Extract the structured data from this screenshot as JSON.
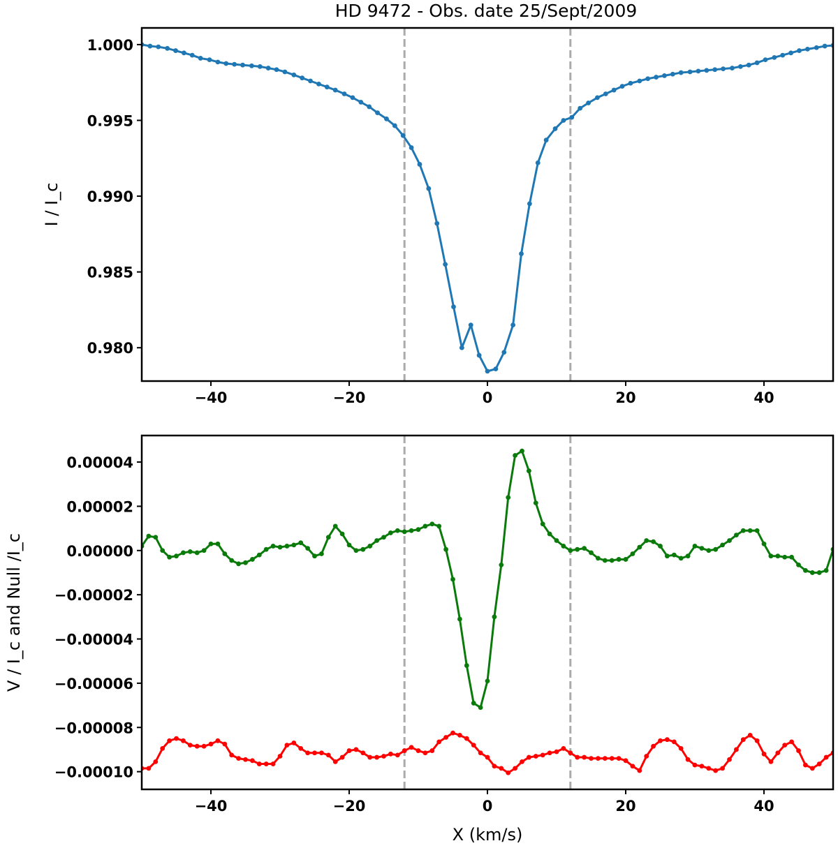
{
  "chart_data": [
    {
      "type": "line",
      "title": "HD 9472 -  Obs. date  25/Sept/2009",
      "xlabel": "",
      "ylabel": "I / I_c",
      "xlim": [
        -50,
        50
      ],
      "ylim": [
        0.9778,
        1.0011
      ],
      "xticks": [
        -40,
        -20,
        0,
        20,
        40
      ],
      "xtick_labels": [
        "−40",
        "−20",
        "0",
        "20",
        "40"
      ],
      "yticks": [
        0.98,
        0.985,
        0.99,
        0.995,
        1.0
      ],
      "ytick_labels": [
        "0.980",
        "0.985",
        "0.990",
        "0.995",
        "1.000"
      ],
      "vlines": [
        -12,
        12
      ],
      "vline_color": "#aaaaaa",
      "grid": false,
      "series": [
        {
          "color": "#1f77b4",
          "marker": "circle",
          "x": [
            -50,
            -48.8,
            -47.6,
            -46.3,
            -45.1,
            -43.9,
            -42.7,
            -41.5,
            -40.2,
            -39,
            -37.8,
            -36.6,
            -35.4,
            -34.1,
            -32.9,
            -31.7,
            -30.5,
            -29.3,
            -28,
            -26.8,
            -25.6,
            -24.4,
            -23.2,
            -22,
            -20.7,
            -19.5,
            -18.3,
            -17.1,
            -15.9,
            -14.6,
            -13.4,
            -12.2,
            -11,
            -9.8,
            -8.5,
            -7.3,
            -6.1,
            -4.9,
            -3.7,
            -2.4,
            -1.2,
            0,
            1.2,
            2.4,
            3.7,
            4.9,
            6.1,
            7.3,
            8.5,
            9.8,
            11,
            12.2,
            13.4,
            14.6,
            15.9,
            17.1,
            18.3,
            19.5,
            20.7,
            22,
            23.2,
            24.4,
            25.6,
            26.8,
            28,
            29.3,
            30.5,
            31.7,
            32.9,
            34.1,
            35.4,
            36.6,
            37.8,
            39,
            40.2,
            41.5,
            42.7,
            43.9,
            45.1,
            46.3,
            47.6,
            48.8,
            50
          ],
          "y": [
            1.0,
            0.9999,
            0.99985,
            0.99975,
            0.9996,
            0.99945,
            0.9993,
            0.9991,
            0.999,
            0.99885,
            0.99875,
            0.9987,
            0.99865,
            0.9986,
            0.99855,
            0.99845,
            0.99835,
            0.9982,
            0.998,
            0.9978,
            0.9976,
            0.9974,
            0.9972,
            0.997,
            0.99675,
            0.9965,
            0.9962,
            0.9959,
            0.9955,
            0.9951,
            0.99465,
            0.994,
            0.9932,
            0.9921,
            0.9905,
            0.9882,
            0.9855,
            0.9827,
            0.98,
            0.9815,
            0.9795,
            0.97845,
            0.9786,
            0.9797,
            0.9815,
            0.9862,
            0.9895,
            0.9922,
            0.9937,
            0.99445,
            0.995,
            0.9952,
            0.9958,
            0.99615,
            0.9965,
            0.99675,
            0.997,
            0.99725,
            0.99745,
            0.9976,
            0.99775,
            0.99785,
            0.99795,
            0.99805,
            0.99815,
            0.9982,
            0.99825,
            0.9983,
            0.99835,
            0.9984,
            0.99845,
            0.99855,
            0.99865,
            0.9988,
            0.999,
            0.99915,
            0.9993,
            0.99945,
            0.9996,
            0.9997,
            0.9998,
            0.9999,
            0.99995
          ]
        }
      ]
    },
    {
      "type": "line",
      "title": "",
      "xlabel": "X  (km/s)",
      "ylabel": "V / I_c  and  Null /I_c",
      "xlim": [
        -50,
        50
      ],
      "ylim": [
        -0.000108,
        5.2e-05
      ],
      "xticks": [
        -40,
        -20,
        0,
        20,
        40
      ],
      "xtick_labels": [
        "−40",
        "−20",
        "0",
        "20",
        "40"
      ],
      "yticks": [
        -0.0001,
        -8e-05,
        -6e-05,
        -4e-05,
        -2e-05,
        0,
        2e-05,
        4e-05
      ],
      "ytick_labels": [
        "−0.00010",
        "−0.00008",
        "−0.00006",
        "−0.00004",
        "−0.00002",
        "0.00000",
        "0.00002",
        "0.00004"
      ],
      "vlines": [
        -12,
        12
      ],
      "vline_color": "#aaaaaa",
      "grid": false,
      "series": [
        {
          "color": "#0a7a0a",
          "marker": "circle",
          "x": [
            -50,
            -49,
            -48,
            -47,
            -46,
            -45,
            -44,
            -43,
            -42,
            -41,
            -40,
            -39,
            -38,
            -37,
            -36,
            -35,
            -34,
            -33,
            -32,
            -31,
            -30,
            -29,
            -28,
            -27,
            -26,
            -25,
            -24,
            -23,
            -22,
            -21,
            -20,
            -19,
            -18,
            -17,
            -16,
            -15,
            -14,
            -13,
            -12,
            -11,
            -10,
            -9,
            -8,
            -7,
            -6,
            -5,
            -4,
            -3,
            -2,
            -1,
            0,
            1,
            2,
            3,
            4,
            5,
            6,
            7,
            8,
            9,
            10,
            11,
            12,
            13,
            14,
            15,
            16,
            17,
            18,
            19,
            20,
            21,
            22,
            23,
            24,
            25,
            26,
            27,
            28,
            29,
            30,
            31,
            32,
            33,
            34,
            35,
            36,
            37,
            38,
            39,
            40,
            41,
            42,
            43,
            44,
            45,
            46,
            47,
            48,
            49,
            50
          ],
          "y": [
            2e-06,
            6.5e-06,
            6e-06,
            0,
            -3e-06,
            -2.5e-06,
            -1e-06,
            -5e-07,
            -1e-06,
            0,
            3e-06,
            3e-06,
            -1.5e-06,
            -4.5e-06,
            -6e-06,
            -5.5e-06,
            -4e-06,
            -2e-06,
            5e-07,
            2e-06,
            1.5e-06,
            2e-06,
            2.5e-06,
            3.5e-06,
            1e-06,
            -2.5e-06,
            -1.5e-06,
            6e-06,
            1.1e-05,
            7.5e-06,
            2.5e-06,
            0,
            5e-07,
            2e-06,
            4.5e-06,
            6e-06,
            8e-06,
            9e-06,
            8.5e-06,
            9e-06,
            9.5e-06,
            1.1e-05,
            1.2e-05,
            1.1e-05,
            5e-07,
            -1.3e-05,
            -3.1e-05,
            -5.2e-05,
            -6.9e-05,
            -7.1e-05,
            -5.9e-05,
            -3e-05,
            -6.5e-06,
            2.4e-05,
            4.3e-05,
            4.5e-05,
            3.6e-05,
            2.15e-05,
            1.2e-05,
            7.5e-06,
            4.5e-06,
            2e-06,
            0,
            5e-07,
            1e-06,
            -1e-06,
            -3.5e-06,
            -4.5e-06,
            -4.5e-06,
            -4e-06,
            -4e-06,
            -1.5e-06,
            1.5e-06,
            4.5e-06,
            4e-06,
            2e-06,
            -2.5e-06,
            -2e-06,
            -3.5e-06,
            -2.5e-06,
            2e-06,
            1e-06,
            0,
            5e-07,
            2.5e-06,
            4.5e-06,
            7e-06,
            9e-06,
            9e-06,
            9e-06,
            3e-06,
            -2.5e-06,
            -2.5e-06,
            -3e-06,
            -3e-06,
            -6.5e-06,
            -9e-06,
            -1e-05,
            -1e-05,
            -9e-06,
            5e-07
          ]
        },
        {
          "color": "#ff0000",
          "marker": "circle",
          "x": [
            -50,
            -49,
            -48,
            -47,
            -46,
            -45,
            -44,
            -43,
            -42,
            -41,
            -40,
            -39,
            -38,
            -37,
            -36,
            -35,
            -34,
            -33,
            -32,
            -31,
            -30,
            -29,
            -28,
            -27,
            -26,
            -25,
            -24,
            -23,
            -22,
            -21,
            -20,
            -19,
            -18,
            -17,
            -16,
            -15,
            -14,
            -13,
            -12,
            -11,
            -10,
            -9,
            -8,
            -7,
            -6,
            -5,
            -4,
            -3,
            -2,
            -1,
            0,
            1,
            2,
            3,
            4,
            5,
            6,
            7,
            8,
            9,
            10,
            11,
            12,
            13,
            14,
            15,
            16,
            17,
            18,
            19,
            20,
            21,
            22,
            23,
            24,
            25,
            26,
            27,
            28,
            29,
            30,
            31,
            32,
            33,
            34,
            35,
            36,
            37,
            38,
            39,
            40,
            41,
            42,
            43,
            44,
            45,
            46,
            47,
            48,
            49,
            50
          ],
          "y": [
            -9.85e-05,
            -9.85e-05,
            -9.55e-05,
            -8.95e-05,
            -8.6e-05,
            -8.5e-05,
            -8.6e-05,
            -8.8e-05,
            -8.85e-05,
            -8.85e-05,
            -8.75e-05,
            -8.6e-05,
            -8.75e-05,
            -9.25e-05,
            -9.4e-05,
            -9.45e-05,
            -9.5e-05,
            -9.65e-05,
            -9.65e-05,
            -9.65e-05,
            -9.3e-05,
            -8.8e-05,
            -8.7e-05,
            -8.95e-05,
            -9.15e-05,
            -9.15e-05,
            -9.15e-05,
            -9.25e-05,
            -9.55e-05,
            -9.35e-05,
            -9.05e-05,
            -9e-05,
            -9.15e-05,
            -9.35e-05,
            -9.35e-05,
            -9.3e-05,
            -9.2e-05,
            -9.25e-05,
            -9.05e-05,
            -8.9e-05,
            -9.05e-05,
            -9.15e-05,
            -9.05e-05,
            -8.65e-05,
            -8.45e-05,
            -8.25e-05,
            -8.35e-05,
            -8.5e-05,
            -8.8e-05,
            -9.15e-05,
            -9.35e-05,
            -9.75e-05,
            -9.85e-05,
            -0.0001005,
            -9.85e-05,
            -9.55e-05,
            -9.35e-05,
            -9.3e-05,
            -9.25e-05,
            -9.15e-05,
            -9.1e-05,
            -8.95e-05,
            -9.15e-05,
            -9.35e-05,
            -9.35e-05,
            -9.4e-05,
            -9.4e-05,
            -9.4e-05,
            -9.4e-05,
            -9.4e-05,
            -9.5e-05,
            -9.75e-05,
            -9.95e-05,
            -9.3e-05,
            -8.85e-05,
            -8.6e-05,
            -8.55e-05,
            -8.65e-05,
            -8.95e-05,
            -9.45e-05,
            -9.7e-05,
            -9.75e-05,
            -9.85e-05,
            -9.95e-05,
            -9.85e-05,
            -9.45e-05,
            -9e-05,
            -8.55e-05,
            -8.35e-05,
            -8.6e-05,
            -9.2e-05,
            -9.55e-05,
            -9.15e-05,
            -8.8e-05,
            -8.65e-05,
            -9.05e-05,
            -9.7e-05,
            -9.85e-05,
            -9.65e-05,
            -9.35e-05,
            -9.15e-05
          ]
        }
      ]
    }
  ]
}
